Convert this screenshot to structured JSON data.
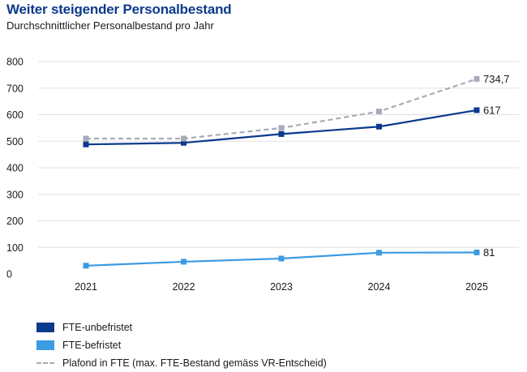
{
  "header": {
    "title": "Weiter steigender Personalbestand",
    "subtitle": "Durchschnittlicher Personalbestand pro Jahr"
  },
  "colors": {
    "title": "#0b3a8c",
    "grid": "#e0e0e0"
  },
  "chart_data": {
    "type": "line",
    "title": "Weiter steigender Personalbestand",
    "subtitle": "Durchschnittlicher Personalbestand pro Jahr",
    "xlabel": "",
    "ylabel": "",
    "categories": [
      "2021",
      "2022",
      "2023",
      "2024",
      "2025"
    ],
    "ylim": [
      0,
      800
    ],
    "yticks": [
      0,
      100,
      200,
      300,
      400,
      500,
      600,
      700,
      800
    ],
    "grid": true,
    "legend_position": "bottom-left",
    "series": [
      {
        "name": "FTE-unbefristet",
        "values": [
          488,
          494,
          527,
          555,
          617
        ],
        "end_label": "617",
        "color": "#0b3a8c",
        "style": "solid"
      },
      {
        "name": "FTE-befristet",
        "values": [
          31,
          46,
          58,
          80,
          81
        ],
        "end_label": "81",
        "color": "#3b9be3",
        "style": "solid"
      },
      {
        "name": "Plafond in FTE (max. FTE-Bestand gemäss VR-Entscheid)",
        "values": [
          510,
          510,
          550,
          612,
          734.7
        ],
        "end_label": "734,7",
        "color": "#a8acb8",
        "style": "dashed"
      }
    ]
  }
}
